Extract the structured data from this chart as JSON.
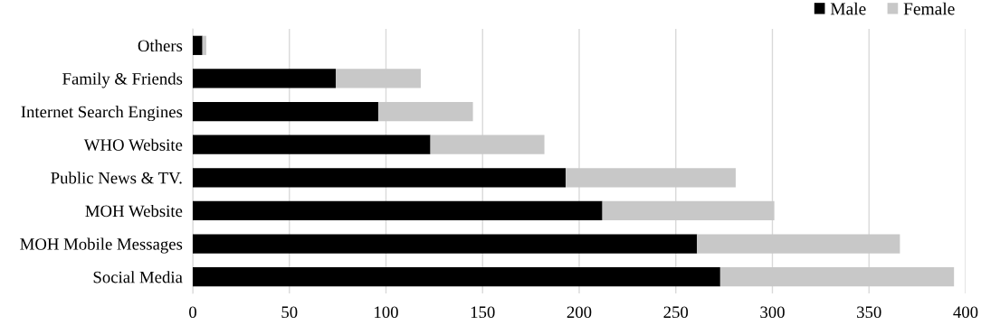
{
  "chart_data": {
    "type": "bar",
    "orientation": "horizontal",
    "stacked": true,
    "categories": [
      "Others",
      "Family & Friends",
      "Internet Search Engines",
      "WHO Website",
      "Public News & TV.",
      "MOH Website",
      "MOH Mobile Messages",
      "Social Media"
    ],
    "series": [
      {
        "name": "Male",
        "color": "#000000",
        "values": [
          5,
          74,
          96,
          123,
          193,
          212,
          261,
          273
        ]
      },
      {
        "name": "Female",
        "color": "#c8c8c8",
        "values": [
          2,
          44,
          49,
          59,
          88,
          89,
          105,
          121
        ]
      }
    ],
    "xlim": [
      0,
      400
    ],
    "xticks": [
      0,
      50,
      100,
      150,
      200,
      250,
      300,
      350,
      400
    ],
    "grid": "x",
    "legend": "top right"
  }
}
